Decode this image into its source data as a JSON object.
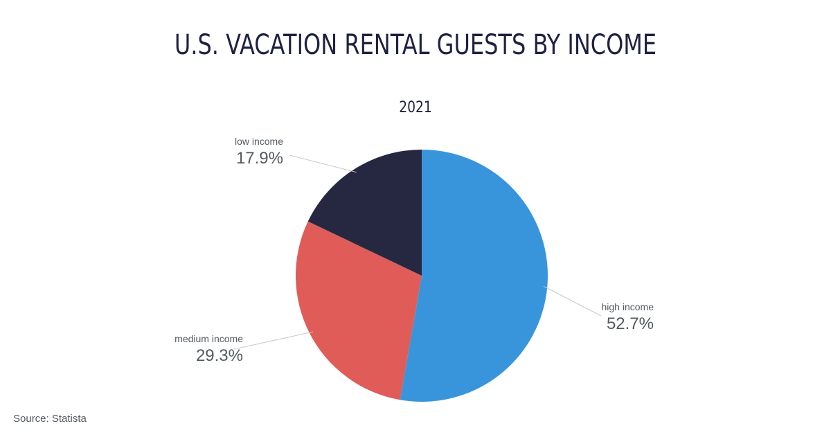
{
  "header": {
    "title": "U.S. VACATION RENTAL GUESTS BY INCOME",
    "subtitle": "2021"
  },
  "footer": {
    "source": "Source: Statista"
  },
  "chart_data": {
    "type": "pie",
    "title": "U.S. VACATION RENTAL GUESTS BY INCOME",
    "subtitle": "2021",
    "slices": [
      {
        "label": "high income",
        "value": 52.7,
        "display": "52.7%",
        "color": "#3995db"
      },
      {
        "label": "medium income",
        "value": 29.3,
        "display": "29.3%",
        "color": "#df5c58"
      },
      {
        "label": "low income",
        "value": 17.9,
        "display": "17.9%",
        "color": "#262842"
      }
    ],
    "start": "12 o'clock",
    "direction": "clockwise",
    "legend": "none (labels beside slices with leader lines)"
  }
}
